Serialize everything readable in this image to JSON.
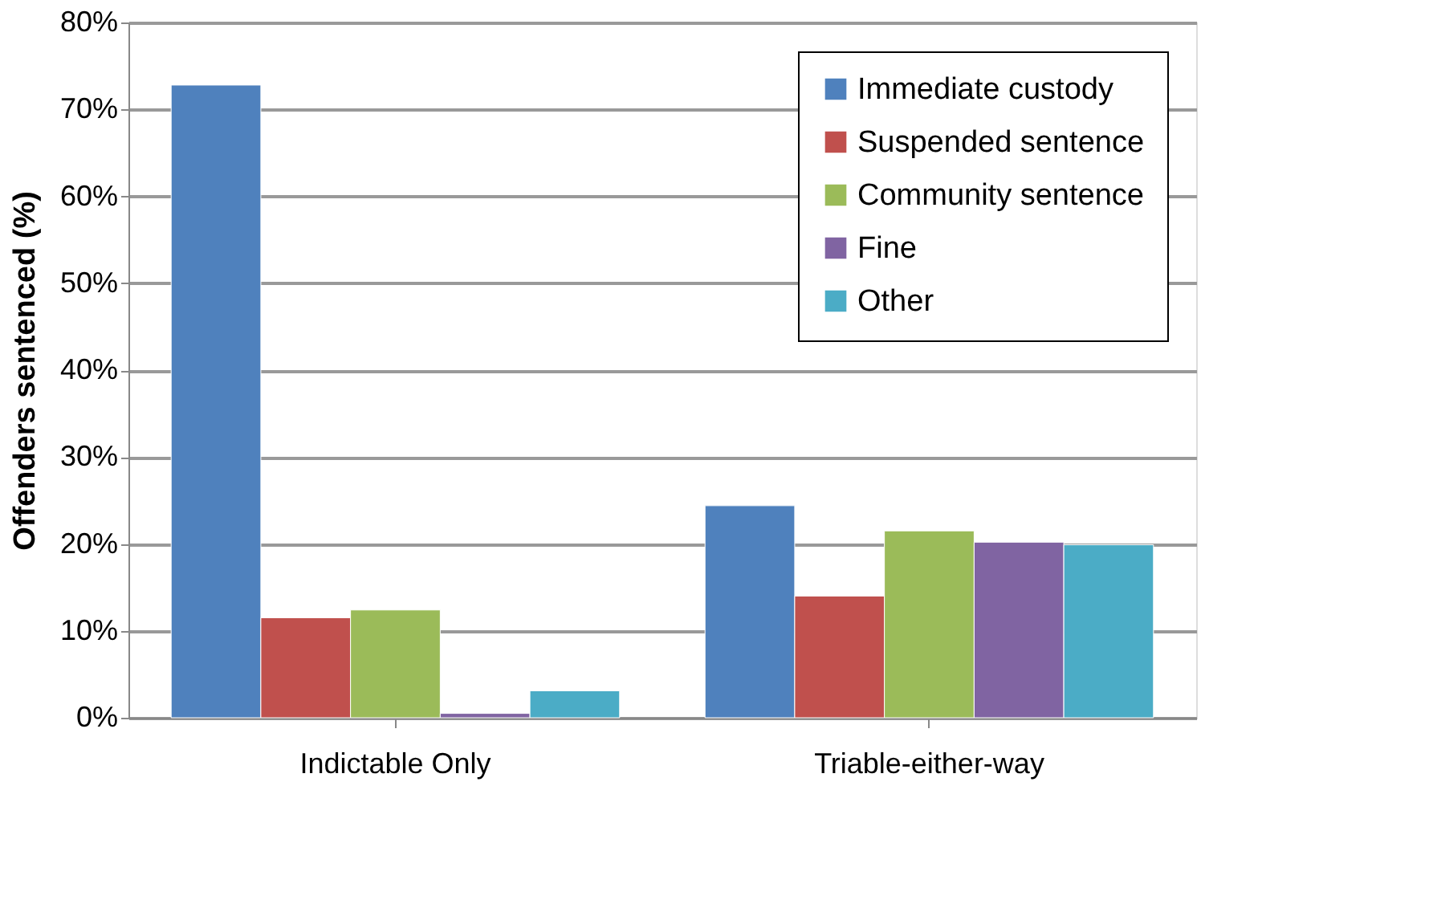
{
  "chart_data": {
    "type": "bar",
    "ylabel": "Offenders sentenced (%)",
    "categories": [
      "Indictable Only",
      "Triable-either-way"
    ],
    "series": [
      {
        "name": "Immediate custody",
        "color": "#4f81bd",
        "values": [
          72.8,
          24.4
        ]
      },
      {
        "name": "Suspended sentence",
        "color": "#c0504d",
        "values": [
          11.5,
          14.0
        ]
      },
      {
        "name": "Community sentence",
        "color": "#9bbb59",
        "values": [
          12.4,
          21.5
        ]
      },
      {
        "name": "Fine",
        "color": "#8064a2",
        "values": [
          0.5,
          20.2
        ]
      },
      {
        "name": "Other",
        "color": "#4bacc6",
        "values": [
          3.1,
          19.9
        ]
      }
    ],
    "ylim": [
      0,
      80
    ],
    "yticks": [
      {
        "value": 0,
        "label": "0%"
      },
      {
        "value": 10,
        "label": "10%"
      },
      {
        "value": 20,
        "label": "20%"
      },
      {
        "value": 30,
        "label": "30%"
      },
      {
        "value": 40,
        "label": "40%"
      },
      {
        "value": 50,
        "label": "50%"
      },
      {
        "value": 60,
        "label": "60%"
      },
      {
        "value": 70,
        "label": "70%"
      },
      {
        "value": 80,
        "label": "80%"
      }
    ],
    "grid": "y",
    "legend": "top right"
  }
}
